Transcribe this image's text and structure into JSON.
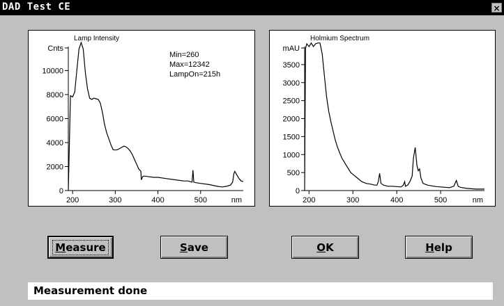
{
  "window": {
    "title": "DAD Test CE",
    "close_glyph": "×"
  },
  "lamp_panel": {
    "title": "Lamp Intensity",
    "info": [
      "Min=260",
      "Max=12342",
      "LampOn=215h"
    ]
  },
  "holmium_panel": {
    "title": "Holmium Spectrum"
  },
  "buttons": {
    "measure": {
      "label_ul": "M",
      "label_rest": "easure"
    },
    "save": {
      "label_ul": "S",
      "label_rest": "ave"
    },
    "ok": {
      "label_ul": "O",
      "label_rest": "K"
    },
    "help": {
      "label_ul": "H",
      "label_rest": "elp"
    }
  },
  "status": {
    "text": "Measurement done"
  },
  "chart_data": [
    {
      "type": "line",
      "title": "Lamp Intensity",
      "ylabel": "Cnts",
      "xlabel": "nm",
      "xlim": [
        190,
        600
      ],
      "ylim": [
        0,
        12000
      ],
      "xticks": [
        200,
        300,
        400,
        500
      ],
      "yticks": [
        0,
        2000,
        4000,
        6000,
        8000,
        10000
      ],
      "annotations": [
        "Min=260",
        "Max=12342",
        "LampOn=215h"
      ],
      "x": [
        190,
        195,
        200,
        205,
        210,
        215,
        220,
        225,
        230,
        235,
        240,
        245,
        250,
        255,
        260,
        265,
        270,
        275,
        280,
        285,
        290,
        295,
        300,
        305,
        310,
        315,
        320,
        325,
        330,
        335,
        340,
        345,
        350,
        355,
        360,
        361,
        365,
        370,
        380,
        390,
        400,
        420,
        440,
        460,
        470,
        475,
        480,
        482,
        484,
        490,
        500,
        520,
        540,
        550,
        560,
        570,
        575,
        578,
        580,
        585,
        590,
        595,
        600
      ],
      "values": [
        0,
        7900,
        7800,
        8200,
        10000,
        11800,
        12342,
        11800,
        9800,
        8500,
        7700,
        7600,
        7700,
        7650,
        7600,
        7300,
        6500,
        5500,
        4800,
        4300,
        3800,
        3400,
        3380,
        3400,
        3500,
        3600,
        3700,
        3650,
        3500,
        3300,
        3000,
        2600,
        2200,
        1800,
        1600,
        900,
        1200,
        1200,
        1150,
        1100,
        1100,
        1000,
        900,
        800,
        800,
        750,
        700,
        1700,
        700,
        650,
        600,
        500,
        350,
        300,
        350,
        450,
        700,
        1400,
        1600,
        1300,
        1000,
        800,
        750
      ]
    },
    {
      "type": "line",
      "title": "Holmium Spectrum",
      "ylabel": "mAU",
      "xlabel": "nm",
      "xlim": [
        190,
        600
      ],
      "ylim": [
        0,
        4000
      ],
      "xticks": [
        200,
        300,
        400,
        500
      ],
      "yticks": [
        0,
        500,
        1000,
        1500,
        2000,
        2500,
        3000,
        3500
      ],
      "x": [
        190,
        192,
        195,
        200,
        205,
        210,
        215,
        220,
        225,
        230,
        235,
        240,
        245,
        250,
        255,
        260,
        265,
        270,
        275,
        280,
        285,
        290,
        295,
        300,
        310,
        320,
        330,
        340,
        350,
        355,
        358,
        361,
        364,
        370,
        380,
        390,
        400,
        410,
        415,
        418,
        420,
        425,
        430,
        435,
        438,
        442,
        446,
        449,
        452,
        455,
        460,
        470,
        480,
        490,
        500,
        510,
        520,
        530,
        536,
        540,
        545,
        550,
        560,
        570,
        580,
        590,
        600
      ],
      "values": [
        0,
        3950,
        4080,
        4000,
        4100,
        4000,
        4080,
        4100,
        4100,
        3800,
        3200,
        2600,
        2200,
        1900,
        1650,
        1400,
        1200,
        1050,
        900,
        800,
        700,
        600,
        500,
        450,
        350,
        250,
        200,
        180,
        150,
        150,
        250,
        480,
        200,
        150,
        120,
        120,
        110,
        100,
        150,
        250,
        120,
        150,
        250,
        400,
        900,
        1200,
        700,
        550,
        600,
        350,
        200,
        150,
        130,
        110,
        100,
        90,
        80,
        120,
        280,
        120,
        90,
        80,
        60,
        50,
        40,
        40,
        40
      ]
    }
  ]
}
